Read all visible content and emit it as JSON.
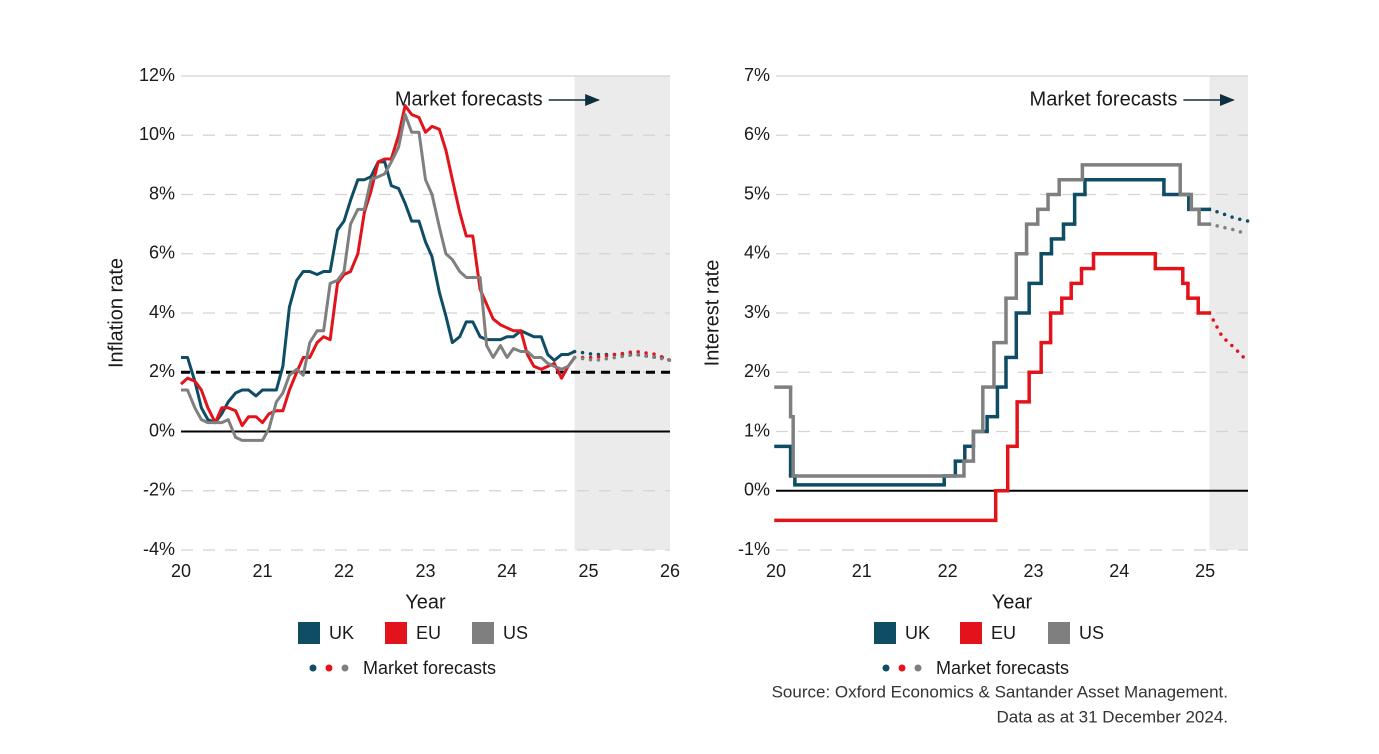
{
  "chart_data": [
    {
      "type": "line",
      "x_label": "Year",
      "y_label": "Inflation rate",
      "annotation": "Market forecasts",
      "forecast_label": "Market forecasts",
      "xlim": [
        20,
        26
      ],
      "xticks": [
        20,
        21,
        22,
        23,
        24,
        25,
        26
      ],
      "ylim": [
        -4,
        12
      ],
      "yticks": [
        {
          "value": -4,
          "label": "-4%"
        },
        {
          "value": -2,
          "label": "-2%"
        },
        {
          "value": 0,
          "label": "0%"
        },
        {
          "value": 2,
          "label": "2%"
        },
        {
          "value": 4,
          "label": "4%"
        },
        {
          "value": 6,
          "label": "6%"
        },
        {
          "value": 8,
          "label": "8%"
        },
        {
          "value": 10,
          "label": "10%"
        },
        {
          "value": 12,
          "label": "12%"
        }
      ],
      "grid": true,
      "shade_color": "#ebebeb",
      "hlines": [
        {
          "value": 0,
          "dashed": false
        },
        {
          "value": 2,
          "dashed": true
        }
      ],
      "x": [
        20,
        20.08,
        20.17,
        20.25,
        20.33,
        20.42,
        20.5,
        20.58,
        20.67,
        20.75,
        20.83,
        20.92,
        21,
        21.08,
        21.17,
        21.25,
        21.33,
        21.42,
        21.5,
        21.58,
        21.67,
        21.75,
        21.83,
        21.92,
        22,
        22.08,
        22.17,
        22.25,
        22.33,
        22.42,
        22.5,
        22.58,
        22.67,
        22.75,
        22.83,
        22.92,
        23,
        23.08,
        23.17,
        23.25,
        23.33,
        23.42,
        23.5,
        23.58,
        23.67,
        23.75,
        23.83,
        23.92,
        24,
        24.08,
        24.17,
        24.25,
        24.33,
        24.42,
        24.5,
        24.58,
        24.67,
        24.75,
        24.83
      ],
      "series": [
        {
          "name": "UK",
          "color": "#0e4d64",
          "values": [
            2.5,
            2.5,
            1.7,
            0.8,
            0.4,
            0.3,
            0.6,
            1.0,
            1.3,
            1.4,
            1.4,
            1.2,
            1.4,
            1.4,
            1.4,
            2.2,
            4.2,
            5.1,
            5.4,
            5.4,
            5.3,
            5.4,
            5.4,
            6.8,
            7.1,
            7.8,
            8.5,
            8.5,
            8.6,
            9.1,
            9.1,
            8.3,
            8.2,
            7.7,
            7.1,
            7.1,
            6.4,
            5.9,
            4.7,
            3.9,
            3.0,
            3.2,
            3.7,
            3.7,
            3.2,
            3.1,
            3.1,
            3.1,
            3.2,
            3.2,
            3.4,
            3.3,
            3.2,
            3.2,
            2.6,
            2.4,
            2.6,
            2.6,
            2.7
          ]
        },
        {
          "name": "EU",
          "color": "#e3131b",
          "values": [
            1.6,
            1.8,
            1.7,
            1.4,
            0.8,
            0.3,
            0.8,
            0.8,
            0.7,
            0.2,
            0.5,
            0.5,
            0.3,
            0.6,
            0.7,
            0.7,
            1.4,
            2.0,
            2.5,
            2.5,
            3.0,
            3.2,
            3.1,
            5.0,
            5.3,
            5.4,
            6.0,
            7.4,
            8.1,
            9.1,
            9.2,
            9.2,
            10.0,
            11.0,
            10.7,
            10.6,
            10.1,
            10.3,
            10.2,
            9.5,
            8.5,
            7.4,
            6.6,
            6.6,
            4.8,
            4.3,
            3.8,
            3.6,
            3.5,
            3.4,
            3.4,
            2.6,
            2.2,
            2.1,
            2.2,
            2.3,
            1.8,
            2.2,
            2.5
          ]
        },
        {
          "name": "US",
          "color": "#7f7f7f",
          "values": [
            1.4,
            1.4,
            0.8,
            0.4,
            0.3,
            0.3,
            0.3,
            0.4,
            -0.2,
            -0.3,
            -0.3,
            -0.3,
            -0.3,
            0.1,
            1.0,
            1.3,
            1.9,
            2.1,
            1.9,
            3.0,
            3.4,
            3.4,
            5.0,
            5.1,
            5.4,
            7.0,
            7.5,
            7.5,
            8.5,
            8.6,
            8.7,
            9.1,
            9.6,
            10.7,
            10.1,
            10.1,
            8.5,
            8.0,
            6.9,
            6.0,
            5.8,
            5.4,
            5.2,
            5.2,
            5.2,
            2.9,
            2.5,
            2.9,
            2.5,
            2.8,
            2.7,
            2.7,
            2.5,
            2.5,
            2.3,
            2.2,
            2.1,
            2.2,
            2.5
          ]
        }
      ],
      "forecasts": [
        {
          "color": "#0e4d64",
          "x": [
            24.83,
            25.08,
            25.33,
            25.58,
            25.83,
            26
          ],
          "values": [
            2.7,
            2.6,
            2.6,
            2.6,
            2.5,
            2.5
          ]
        },
        {
          "color": "#e3131b",
          "x": [
            24.83,
            25.08,
            25.33,
            25.58,
            25.83,
            26
          ],
          "values": [
            2.5,
            2.5,
            2.6,
            2.7,
            2.6,
            2.4
          ]
        },
        {
          "color": "#7f7f7f",
          "x": [
            24.83,
            25.08,
            25.33,
            25.58,
            25.83,
            26
          ],
          "values": [
            2.5,
            2.4,
            2.5,
            2.6,
            2.5,
            2.4
          ]
        }
      ]
    },
    {
      "type": "step",
      "x_label": "Year",
      "y_label": "Interest rate",
      "annotation": "Market forecasts",
      "forecast_label": "Market forecasts",
      "xlim": [
        20,
        25.5
      ],
      "xticks": [
        20,
        21,
        22,
        23,
        24,
        25
      ],
      "ylim": [
        -1,
        7
      ],
      "yticks": [
        {
          "value": -1,
          "label": "-1%"
        },
        {
          "value": 0,
          "label": "0%"
        },
        {
          "value": 1,
          "label": "1%"
        },
        {
          "value": 2,
          "label": "2%"
        },
        {
          "value": 3,
          "label": "3%"
        },
        {
          "value": 4,
          "label": "4%"
        },
        {
          "value": 5,
          "label": "5%"
        },
        {
          "value": 6,
          "label": "6%"
        },
        {
          "value": 7,
          "label": "7%"
        }
      ],
      "grid": true,
      "shade_color": "#ebebeb",
      "hlines": [
        {
          "value": 0,
          "dashed": false
        }
      ],
      "series": [
        {
          "name": "UK",
          "color": "#0e4d64",
          "x": [
            20,
            20.17,
            20.22,
            21.96,
            22.09,
            22.2,
            22.3,
            22.46,
            22.58,
            22.68,
            22.8,
            22.95,
            23.09,
            23.21,
            23.35,
            23.48,
            23.6,
            24.52,
            24.81
          ],
          "values": [
            0.75,
            0.25,
            0.1,
            0.25,
            0.5,
            0.75,
            1.0,
            1.25,
            1.75,
            2.25,
            3.0,
            3.5,
            4.0,
            4.25,
            4.5,
            5.0,
            5.25,
            5.0,
            4.75
          ],
          "x_end": 25.05
        },
        {
          "name": "EU",
          "color": "#e3131b",
          "x": [
            20,
            22.56,
            22.7,
            22.81,
            22.95,
            23.09,
            23.2,
            23.33,
            23.44,
            23.56,
            23.7,
            24.42,
            24.74,
            24.8,
            24.92
          ],
          "values": [
            -0.5,
            0.0,
            0.75,
            1.5,
            2.0,
            2.5,
            3.0,
            3.25,
            3.5,
            3.75,
            4.0,
            3.75,
            3.5,
            3.25,
            3.0
          ],
          "x_end": 25.05
        },
        {
          "name": "US",
          "color": "#7f7f7f",
          "x": [
            20,
            20.17,
            20.2,
            22.19,
            22.3,
            22.41,
            22.54,
            22.68,
            22.8,
            22.92,
            23.05,
            23.17,
            23.3,
            23.57,
            24.71,
            24.84,
            24.93
          ],
          "values": [
            1.75,
            1.25,
            0.25,
            0.5,
            1.0,
            1.75,
            2.5,
            3.25,
            4.0,
            4.5,
            4.75,
            5.0,
            5.25,
            5.5,
            5.0,
            4.75,
            4.5
          ],
          "x_end": 25.05
        }
      ],
      "forecasts": [
        {
          "color": "#0e4d64",
          "x": [
            25.05,
            25.2,
            25.35,
            25.5
          ],
          "values": [
            4.75,
            4.68,
            4.6,
            4.55
          ]
        },
        {
          "color": "#e3131b",
          "x": [
            25.05,
            25.2,
            25.35,
            25.45
          ],
          "values": [
            3.0,
            2.6,
            2.4,
            2.25
          ]
        },
        {
          "color": "#7f7f7f",
          "x": [
            25.05,
            25.2,
            25.35,
            25.45
          ],
          "values": [
            4.5,
            4.45,
            4.4,
            4.35
          ]
        }
      ],
      "notes": [
        "Source: Oxford Economics & Santander Asset Management.",
        "Data as at 31 December 2024."
      ]
    }
  ]
}
